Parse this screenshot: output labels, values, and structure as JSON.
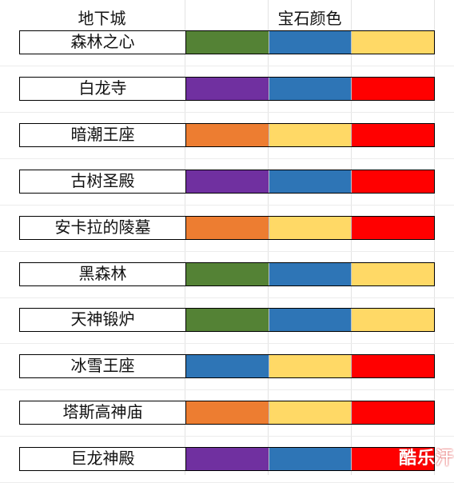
{
  "header": {
    "dungeon_col": "地下城",
    "gem_col": "宝石颜色"
  },
  "colors": {
    "green": "#548235",
    "blue": "#2E75B6",
    "yellow": "#FFD966",
    "red": "#FF0000",
    "purple": "#7030A0",
    "orange": "#ED7D31"
  },
  "rows": [
    {
      "name": "森林之心",
      "gems": [
        "green",
        "blue",
        "yellow"
      ]
    },
    {
      "name": "白龙寺",
      "gems": [
        "purple",
        "blue",
        "red"
      ]
    },
    {
      "name": "暗潮王座",
      "gems": [
        "orange",
        "yellow",
        "red"
      ]
    },
    {
      "name": "古树圣殿",
      "gems": [
        "purple",
        "blue",
        "red"
      ]
    },
    {
      "name": "安卡拉的陵墓",
      "gems": [
        "orange",
        "yellow",
        "red"
      ]
    },
    {
      "name": "黑森林",
      "gems": [
        "green",
        "blue",
        "yellow"
      ]
    },
    {
      "name": "天神锻炉",
      "gems": [
        "green",
        "blue",
        "yellow"
      ]
    },
    {
      "name": "冰雪王座",
      "gems": [
        "blue",
        "yellow",
        "red"
      ]
    },
    {
      "name": "塔斯高神庙",
      "gems": [
        "orange",
        "yellow",
        "red"
      ]
    },
    {
      "name": "巨龙神殿",
      "gems": [
        "purple",
        "blue",
        "red"
      ]
    }
  ],
  "watermark": "酷乐汗"
}
